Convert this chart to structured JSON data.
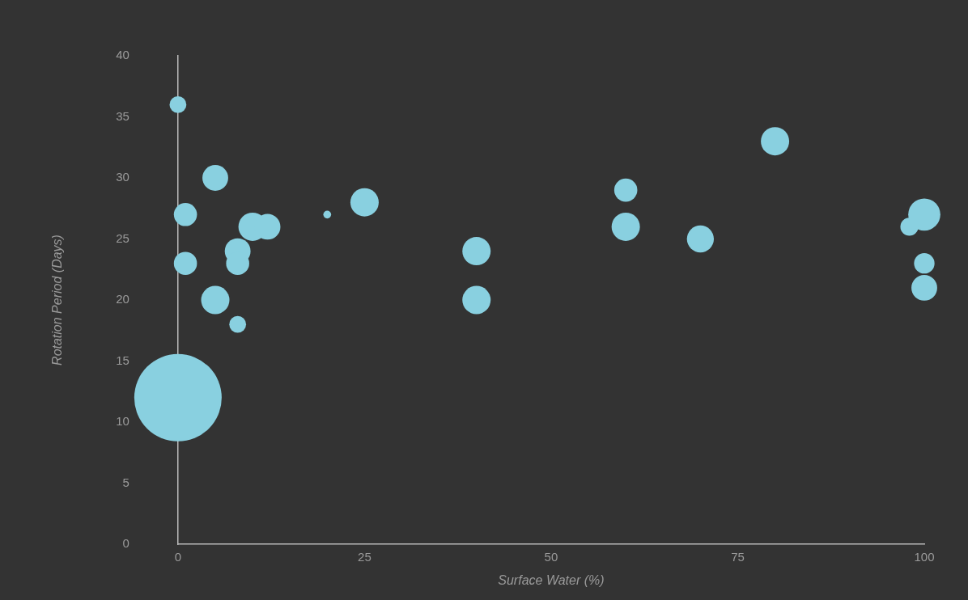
{
  "chart_data": {
    "type": "bubble",
    "xlabel": "Surface Water (%)",
    "ylabel": "Rotation Period (Days)",
    "xlim": [
      0,
      100
    ],
    "xticks": [
      0,
      25,
      50,
      75,
      100
    ],
    "ylim": [
      0,
      40
    ],
    "yticks": [
      0,
      5,
      10,
      15,
      20,
      25,
      30,
      35,
      40
    ],
    "grid": false,
    "legend": false,
    "series": [
      {
        "color": "#89d0e0",
        "x": [
          0,
          1,
          1,
          5,
          5,
          0,
          8,
          8,
          8,
          10,
          12,
          20,
          25,
          40,
          40,
          60,
          60,
          70,
          80,
          98,
          100,
          100,
          100
        ],
        "values": [
          36,
          27,
          23,
          30,
          20,
          12,
          24,
          23,
          18,
          26,
          26,
          27,
          28,
          24,
          20,
          29,
          26,
          25,
          33,
          26,
          27,
          23,
          21
        ],
        "sizes": [
          0.037,
          0.07,
          0.07,
          0.087,
          0.105,
          1,
          0.087,
          0.07,
          0.037,
          0.105,
          0.087,
          0.008,
          0.105,
          0.105,
          0.105,
          0.07,
          0.105,
          0.095,
          0.105,
          0.042,
          0.135,
          0.055,
          0.087
        ]
      }
    ]
  }
}
